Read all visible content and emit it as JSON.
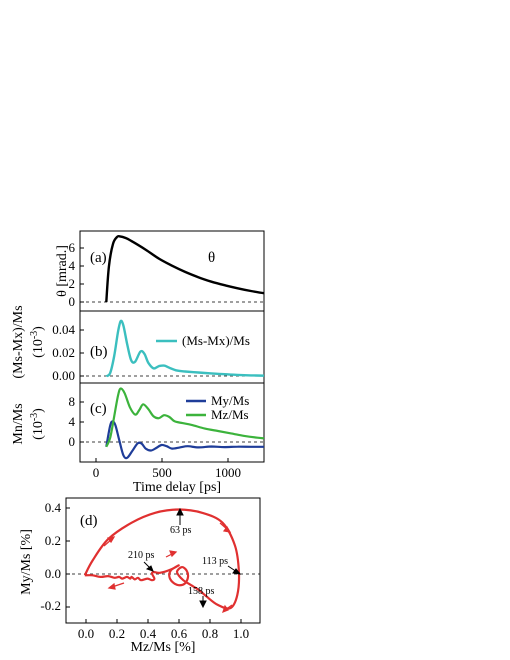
{
  "chart_data": [
    {
      "id": "a",
      "type": "line",
      "panel_label": "(a)",
      "ylabel": "θ [mrad.]",
      "ylim": [
        -1,
        8
      ],
      "yticks": [
        0,
        2,
        4,
        6
      ],
      "xlim": [
        -200,
        1200
      ],
      "zero_line": true,
      "annotation": "θ",
      "series": [
        {
          "color": "#000000",
          "x": [
            0,
            20,
            50,
            80,
            100,
            150,
            200,
            300,
            400,
            500,
            600,
            700,
            800,
            900,
            1000,
            1100,
            1200
          ],
          "y": [
            0,
            4.0,
            6.5,
            7.3,
            7.4,
            7.2,
            6.8,
            5.9,
            4.9,
            4.1,
            3.4,
            2.8,
            2.3,
            1.9,
            1.55,
            1.25,
            1.0
          ]
        }
      ]
    },
    {
      "id": "b",
      "type": "line",
      "panel_label": "(b)",
      "ylabel": "(Ms-Mx)/Ms",
      "yunit": "(10",
      "yunit_exp": "-3",
      "yunit_close": ")",
      "ylim": [
        -0.006,
        0.058
      ],
      "yticks": [
        "0.00",
        "0.02",
        "0.04"
      ],
      "xlim": [
        -200,
        1200
      ],
      "zero_line": true,
      "series": [
        {
          "name": "(Ms-Mx)/Ms",
          "color": "#3bbfbf",
          "x": [
            0,
            30,
            60,
            90,
            110,
            130,
            160,
            190,
            220,
            260,
            290,
            320,
            360,
            400,
            440,
            480,
            540,
            600,
            700,
            800,
            900,
            1000,
            1100,
            1200
          ],
          "y": [
            0,
            0.003,
            0.018,
            0.04,
            0.049,
            0.045,
            0.028,
            0.014,
            0.013,
            0.022,
            0.02,
            0.012,
            0.007,
            0.009,
            0.0095,
            0.0075,
            0.005,
            0.0042,
            0.0033,
            0.0025,
            0.0018,
            0.0012,
            0.0008,
            0.0005
          ]
        }
      ]
    },
    {
      "id": "c",
      "type": "line",
      "panel_label": "(c)",
      "ylabel": "Mn/Ms",
      "yunit": "(10",
      "yunit_exp": "-3",
      "yunit_close": ")",
      "ylim": [
        -2.5,
        10.5
      ],
      "yticks": [
        0,
        4,
        8
      ],
      "xlim": [
        -200,
        1200
      ],
      "xticks": [
        0,
        500,
        1000
      ],
      "xlabel": "Time delay [ps]",
      "zero_line": true,
      "series": [
        {
          "name": "My/Ms",
          "color": "#1f3d99",
          "x": [
            0,
            30,
            50,
            70,
            100,
            130,
            160,
            200,
            240,
            270,
            300,
            340,
            380,
            420,
            460,
            500,
            560,
            620,
            700,
            800,
            900,
            1000,
            1100,
            1200
          ],
          "y": [
            0,
            3.5,
            4.2,
            3.5,
            1.0,
            -1.4,
            -1.8,
            -0.6,
            0.6,
            0.5,
            -0.3,
            -0.6,
            -0.2,
            0.3,
            0.1,
            -0.3,
            -0.1,
            0.1,
            -0.1,
            0.05,
            -0.05,
            0.02,
            0,
            0
          ]
        },
        {
          "name": "Mz/Ms",
          "color": "#3cb33c",
          "x": [
            0,
            30,
            60,
            90,
            110,
            140,
            180,
            220,
            250,
            280,
            320,
            360,
            400,
            440,
            480,
            520,
            580,
            650,
            750,
            850,
            950,
            1050,
            1150,
            1200
          ],
          "y": [
            0,
            1.5,
            5.0,
            8.5,
            9.6,
            8.8,
            6.5,
            5.3,
            6.0,
            7.0,
            6.2,
            5.0,
            4.7,
            5.2,
            4.9,
            4.2,
            3.9,
            3.6,
            3.0,
            2.6,
            2.2,
            1.8,
            1.5,
            1.4
          ]
        }
      ]
    },
    {
      "id": "d",
      "type": "line",
      "panel_label": "(d)",
      "xlabel": "Mz/Ms [%]",
      "ylabel": "My/Ms [%]",
      "xlim": [
        -0.12,
        1.12
      ],
      "ylim": [
        -0.29,
        0.47
      ],
      "xticks": [
        "0.0",
        "0.2",
        "0.4",
        "0.6",
        "0.8",
        "1.0"
      ],
      "yticks": [
        "-0.2",
        "0.0",
        "0.2",
        "0.4"
      ],
      "zero_line": true,
      "series": [
        {
          "color": "#e03030",
          "x": [
            0.0,
            0.05,
            0.15,
            0.3,
            0.45,
            0.6,
            0.75,
            0.88,
            0.96,
            0.985,
            0.975,
            0.93,
            0.85,
            0.78,
            0.73,
            0.68,
            0.63,
            0.6,
            0.59,
            0.62,
            0.65,
            0.66,
            0.64,
            0.6,
            0.56,
            0.54,
            0.55,
            0.58,
            0.6,
            0.55,
            0.48,
            0.44,
            0.43,
            0.445,
            0.43,
            0.4,
            0.36,
            0.34,
            0.32,
            0.3,
            0.29,
            0.27,
            0.24,
            0.22,
            0.19,
            0.15,
            0.1,
            0.05,
            0.0
          ],
          "y": [
            0.0,
            0.09,
            0.22,
            0.32,
            0.38,
            0.4,
            0.38,
            0.32,
            0.18,
            0.02,
            -0.12,
            -0.2,
            -0.18,
            -0.13,
            -0.09,
            -0.06,
            -0.03,
            0.0,
            0.025,
            0.05,
            0.03,
            -0.01,
            -0.05,
            -0.06,
            -0.04,
            -0.005,
            0.03,
            0.05,
            0.06,
            0.035,
            0.015,
            0.02,
            0.01,
            -0.02,
            -0.03,
            -0.02,
            -0.03,
            -0.015,
            -0.025,
            -0.01,
            -0.02,
            -0.01,
            -0.02,
            -0.01,
            -0.015,
            -0.005,
            -0.01,
            0.0,
            0.0
          ]
        }
      ],
      "annotations": [
        {
          "text": "63 ps",
          "x": 0.6,
          "y": 0.31
        },
        {
          "text": "113 ps",
          "x": 0.85,
          "y": 0.06
        },
        {
          "text": "158 ps",
          "x": 0.74,
          "y": -0.13
        },
        {
          "text": "210 ps",
          "x": 0.4,
          "y": 0.11
        }
      ]
    }
  ]
}
